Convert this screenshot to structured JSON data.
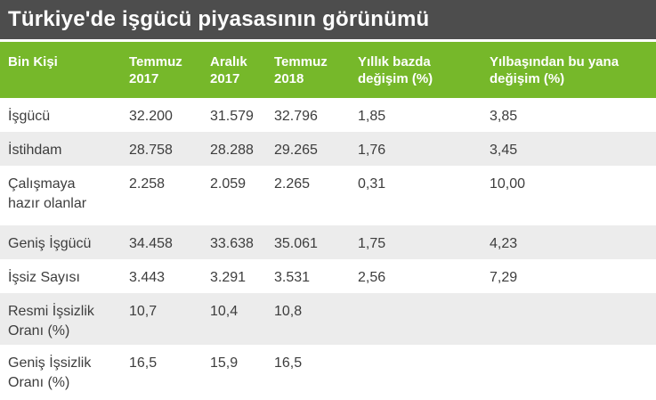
{
  "title_bar": {
    "title": "Türkiye'de işgücü piyasasının görünümü"
  },
  "colors": {
    "title_bar_bg": "#4d4d4d",
    "title_text": "#ffffff",
    "header_bg": "#76b82a",
    "header_text": "#ffffff",
    "row_bg": "#ffffff",
    "row_alt_bg": "#ececec",
    "body_text": "#3d3d3d"
  },
  "chart_data": {
    "type": "table",
    "title": "Türkiye'de işgücü piyasasının görünümü",
    "unit": "Bin Kişi",
    "columns": [
      "Bin Kişi",
      "Temmuz 2017",
      "Aralık 2017",
      "Temmuz 2018",
      "Yıllık bazda değişim (%)",
      "Yılbaşından bu yana değişim (%)"
    ],
    "rows": [
      [
        "İşgücü",
        "32.200",
        "31.579",
        "32.796",
        "1,85",
        "3,85"
      ],
      [
        "İstihdam",
        "28.758",
        "28.288",
        "29.265",
        "1,76",
        "3,45"
      ],
      [
        "Çalışmaya hazır olanlar",
        "2.258",
        "2.059",
        "2.265",
        "0,31",
        "10,00"
      ],
      [
        "Geniş İşgücü",
        "34.458",
        "33.638",
        "35.061",
        "1,75",
        "4,23"
      ],
      [
        "İşsiz Sayısı",
        "3.443",
        "3.291",
        "3.531",
        "2,56",
        "7,29"
      ],
      [
        "Resmi İşsizlik Oranı (%)",
        "10,7",
        "10,4",
        "10,8",
        "",
        ""
      ],
      [
        "Geniş İşsizlik Oranı (%)",
        "16,5",
        "15,9",
        "16,5",
        "",
        ""
      ]
    ],
    "layout": {
      "header_position": "top",
      "zebra_striping": true,
      "first_row_background": "white"
    }
  }
}
